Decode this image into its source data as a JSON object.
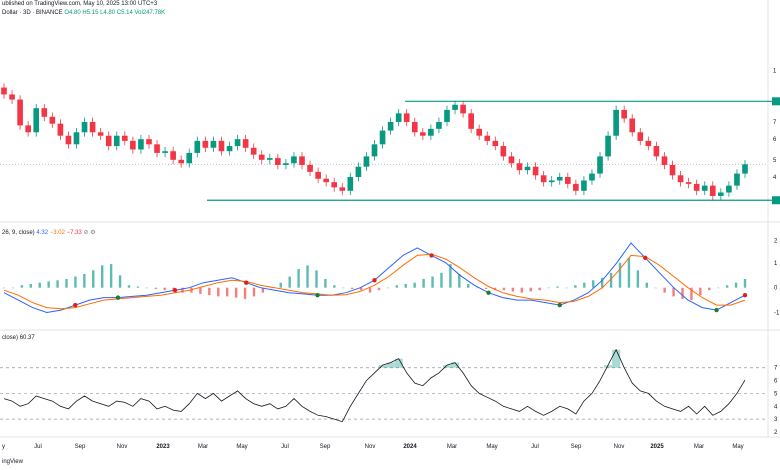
{
  "header": {
    "published": "ublished on TradingView.com, May 10, 2025 13:00 UTC+3",
    "symbol": "Dollar · 3D · BINANCE",
    "open": "O4.80",
    "high": "H5.15",
    "low": "L4.80",
    "close": "C5.14",
    "volume": "Vol247.78K"
  },
  "macd_header": {
    "params": "26, 9, close)",
    "macd": "4.32",
    "signal": "−3.02",
    "hist": "−7.33"
  },
  "rsi_header": {
    "params": "close)",
    "value": "60.37"
  },
  "footer": {
    "brand": "ingView"
  },
  "colors": {
    "up": "#089981",
    "down": "#f23645",
    "macd": "#2962ff",
    "signal": "#ff6d00",
    "level": "#089981",
    "rsi": "#131722"
  },
  "chart_data": [
    {
      "type": "candlestick",
      "title": "Dollar · 3D · BINANCE",
      "y_tick_labels": [
        "1",
        "9",
        "7",
        "6",
        "5",
        "4",
        "3"
      ],
      "ylim": [
        2.6,
        11.2
      ],
      "support_level": 3.05,
      "resistance_level": 8.8,
      "last_price": 5.14,
      "closes": [
        9.2,
        8.9,
        7.4,
        7.0,
        8.4,
        7.9,
        7.5,
        6.8,
        6.3,
        7.0,
        7.6,
        7.0,
        6.8,
        6.2,
        6.8,
        6.5,
        6.0,
        6.6,
        6.3,
        5.8,
        5.9,
        5.4,
        5.2,
        5.8,
        6.5,
        6.1,
        6.5,
        5.9,
        6.2,
        6.6,
        6.1,
        5.7,
        5.4,
        5.5,
        5.1,
        5.2,
        5.6,
        5.1,
        4.7,
        4.3,
        4.1,
        3.8,
        3.6,
        4.4,
        5.0,
        5.6,
        6.3,
        7.1,
        7.6,
        8.1,
        7.6,
        7.0,
        6.8,
        7.2,
        7.6,
        8.3,
        8.6,
        8.1,
        7.2,
        6.8,
        6.5,
        6.2,
        5.6,
        5.2,
        4.8,
        5.0,
        4.5,
        4.1,
        4.2,
        4.4,
        4.0,
        3.6,
        4.2,
        4.6,
        5.6,
        6.8,
        8.3,
        7.8,
        7.0,
        6.5,
        6.2,
        5.6,
        5.1,
        4.5,
        4.1,
        4.0,
        3.6,
        3.9,
        3.3,
        3.5,
        3.9,
        4.6,
        5.14
      ],
      "rsi_series": [
        46,
        44,
        40,
        42,
        48,
        46,
        44,
        40,
        38,
        44,
        48,
        44,
        42,
        40,
        44,
        43,
        40,
        46,
        44,
        38,
        40,
        37,
        36,
        42,
        50,
        46,
        50,
        44,
        48,
        52,
        46,
        42,
        40,
        42,
        38,
        40,
        46,
        40,
        36,
        33,
        32,
        30,
        28,
        40,
        50,
        60,
        66,
        72,
        74,
        77,
        66,
        58,
        56,
        62,
        66,
        72,
        74,
        66,
        56,
        50,
        47,
        44,
        40,
        38,
        36,
        40,
        36,
        33,
        36,
        40,
        38,
        34,
        44,
        50,
        60,
        72,
        84,
        70,
        58,
        52,
        50,
        44,
        40,
        38,
        36,
        40,
        34,
        40,
        33,
        36,
        42,
        50,
        60.37
      ]
    },
    {
      "type": "bar",
      "title": "MACD (26, 9, close)",
      "y_tick_labels": [
        "2",
        "1",
        "0",
        "-1"
      ],
      "ylim": [
        -1.3,
        2.0
      ],
      "macd": [
        -0.2,
        -0.5,
        -0.8,
        -1.0,
        -0.9,
        -0.7,
        -0.5,
        -0.4,
        -0.4,
        -0.35,
        -0.3,
        -0.2,
        -0.1,
        0.0,
        0.2,
        0.3,
        0.4,
        0.2,
        0.0,
        -0.1,
        -0.2,
        -0.25,
        -0.3,
        -0.3,
        -0.2,
        0.0,
        0.3,
        0.8,
        1.3,
        1.6,
        1.3,
        1.0,
        0.5,
        0.1,
        -0.2,
        -0.4,
        -0.5,
        -0.5,
        -0.6,
        -0.7,
        -0.5,
        -0.2,
        0.3,
        1.0,
        1.8,
        1.2,
        0.6,
        0.0,
        -0.5,
        -0.8,
        -0.9,
        -0.6,
        -0.3
      ],
      "signal": [
        -0.1,
        -0.3,
        -0.6,
        -0.8,
        -0.85,
        -0.8,
        -0.65,
        -0.5,
        -0.45,
        -0.4,
        -0.35,
        -0.3,
        -0.2,
        -0.1,
        0.05,
        0.2,
        0.3,
        0.25,
        0.1,
        0.0,
        -0.1,
        -0.2,
        -0.25,
        -0.3,
        -0.28,
        -0.15,
        0.1,
        0.45,
        0.9,
        1.3,
        1.35,
        1.15,
        0.8,
        0.4,
        0.05,
        -0.2,
        -0.35,
        -0.45,
        -0.5,
        -0.6,
        -0.55,
        -0.35,
        0.0,
        0.6,
        1.3,
        1.25,
        0.9,
        0.45,
        0.0,
        -0.4,
        -0.7,
        -0.7,
        -0.5
      ],
      "histogram": [
        0.0,
        0.0,
        0.1,
        0.15,
        0.2,
        0.25,
        0.3,
        0.35,
        0.45,
        0.55,
        0.7,
        0.9,
        0.95,
        0.5,
        0.1,
        0.05,
        0.0,
        -0.05,
        -0.1,
        -0.15,
        -0.2,
        -0.2,
        -0.25,
        -0.3,
        -0.35,
        -0.35,
        -0.4,
        -0.45,
        -0.35,
        -0.2,
        0.0,
        0.2,
        0.45,
        0.75,
        0.9,
        0.7,
        0.35,
        0.1,
        0.0,
        -0.05,
        -0.1,
        -0.2,
        -0.1,
        0.0,
        0.1,
        0.15,
        0.2,
        0.35,
        0.45,
        0.6,
        0.95,
        0.55,
        0.15,
        0.0,
        -0.05,
        -0.1,
        -0.1,
        -0.15,
        -0.2,
        -0.15,
        -0.1,
        0.0,
        0.05,
        0.0,
        0.1,
        0.2,
        0.3,
        0.4,
        0.6,
        1.0,
        1.2,
        0.7,
        0.2,
        0.0,
        -0.2,
        -0.35,
        -0.45,
        -0.5,
        -0.3,
        -0.1,
        0.0,
        0.1,
        0.2,
        0.35
      ],
      "crossovers": [
        {
          "i": 5,
          "dir": "down"
        },
        {
          "i": 8,
          "dir": "up"
        },
        {
          "i": 12,
          "dir": "down"
        },
        {
          "i": 17,
          "dir": "down"
        },
        {
          "i": 22,
          "dir": "up"
        },
        {
          "i": 26,
          "dir": "down"
        },
        {
          "i": 30,
          "dir": "down"
        },
        {
          "i": 34,
          "dir": "up"
        },
        {
          "i": 39,
          "dir": "up"
        },
        {
          "i": 45,
          "dir": "down"
        },
        {
          "i": 50,
          "dir": "up"
        },
        {
          "i": 52,
          "dir": "down"
        }
      ]
    },
    {
      "type": "line",
      "title": "RSI (close)",
      "y_tick_labels": [
        "7",
        "6",
        "5",
        "4",
        "3",
        "2"
      ],
      "ylim": [
        20,
        90
      ],
      "levels": [
        70,
        50,
        30
      ]
    }
  ],
  "x_axis": {
    "labels": [
      "y",
      "Jul",
      "Sep",
      "Nov",
      "2023",
      "Mar",
      "May",
      "Jul",
      "Sep",
      "Nov",
      "2024",
      "Mar",
      "May",
      "Jul",
      "Sep",
      "Nov",
      "2025",
      "Mar",
      "May"
    ],
    "bold": [
      "2023",
      "2024",
      "2025"
    ]
  }
}
